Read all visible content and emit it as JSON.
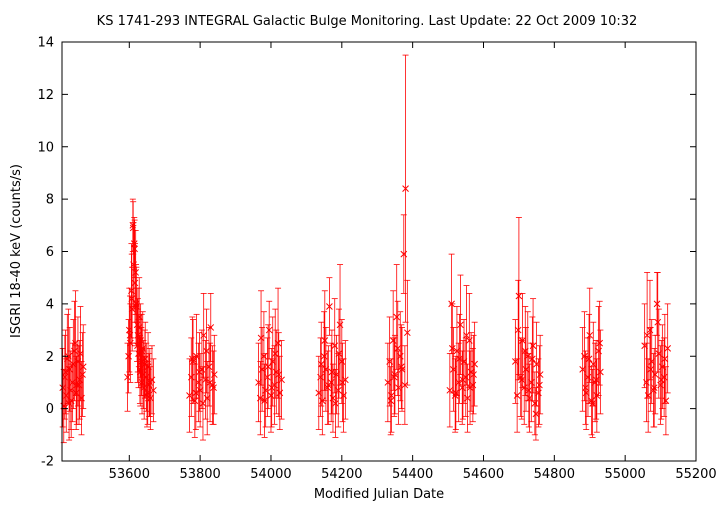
{
  "chart_data": {
    "type": "scatter",
    "title": "KS 1741-293   INTEGRAL Galactic Bulge Monitoring.  Last Update: 22 Oct 2009 10:32",
    "xlabel": "Modified Julian Date",
    "ylabel": "ISGRI 18-40 keV (counts/s)",
    "xlim": [
      53410,
      55200
    ],
    "ylim": [
      -2,
      14
    ],
    "x_ticks": [
      53600,
      53800,
      54000,
      54200,
      54400,
      54600,
      54800,
      55000,
      55200
    ],
    "y_ticks": [
      -2,
      0,
      2,
      4,
      6,
      8,
      10,
      12,
      14
    ],
    "grid": false,
    "legend": "none",
    "marker": "x",
    "error_bars": "vertical",
    "colors": {
      "series": "#ff0000",
      "axes": "#000000"
    },
    "series": [
      {
        "x": [
          53412,
          53418,
          53422,
          53428,
          53432,
          53436,
          53440,
          53445,
          53450,
          53455,
          53460,
          53465,
          53470,
          53415,
          53425,
          53435,
          53448,
          53458,
          53468,
          53420,
          53430,
          53442,
          53452,
          53462,
          53595,
          53598,
          53600,
          53603,
          53606,
          53608,
          53610,
          53612,
          53614,
          53616,
          53618,
          53620,
          53622,
          53624,
          53626,
          53628,
          53630,
          53632,
          53634,
          53636,
          53638,
          53640,
          53642,
          53645,
          53648,
          53650,
          53653,
          53656,
          53660,
          53664,
          53668,
          53602,
          53607,
          53611,
          53615,
          53619,
          53623,
          53627,
          53631,
          53635,
          53644,
          53652,
          53658,
          53770,
          53775,
          53780,
          53785,
          53790,
          53795,
          53800,
          53805,
          53810,
          53815,
          53820,
          53825,
          53830,
          53835,
          53840,
          53778,
          53788,
          53798,
          53808,
          53818,
          53828,
          53838,
          53965,
          53970,
          53975,
          53980,
          53985,
          53990,
          53995,
          54000,
          54005,
          54010,
          54015,
          54020,
          54025,
          54030,
          53972,
          53982,
          53992,
          54002,
          54012,
          54022,
          54135,
          54140,
          54145,
          54150,
          54155,
          54160,
          54165,
          54170,
          54175,
          54180,
          54185,
          54190,
          54195,
          54200,
          54205,
          54210,
          54142,
          54152,
          54162,
          54172,
          54182,
          54192,
          54202,
          54330,
          54335,
          54340,
          54345,
          54350,
          54355,
          54360,
          54365,
          54370,
          54375,
          54380,
          54385,
          54338,
          54348,
          54358,
          54368,
          54378,
          54505,
          54510,
          54515,
          54520,
          54525,
          54530,
          54535,
          54540,
          54545,
          54550,
          54555,
          54560,
          54565,
          54570,
          54575,
          54512,
          54522,
          54532,
          54542,
          54552,
          54562,
          54572,
          54690,
          54695,
          54700,
          54705,
          54710,
          54715,
          54720,
          54725,
          54730,
          54735,
          54740,
          54745,
          54750,
          54755,
          54760,
          54698,
          54708,
          54718,
          54728,
          54738,
          54748,
          54758,
          54880,
          54885,
          54890,
          54895,
          54900,
          54905,
          54910,
          54915,
          54920,
          54925,
          54930,
          54888,
          54898,
          54908,
          54918,
          54928,
          55055,
          55060,
          55065,
          55070,
          55075,
          55080,
          55085,
          55090,
          55095,
          55100,
          55105,
          55110,
          55115,
          55120,
          55062,
          55072,
          55082,
          55092,
          55102,
          55112
        ],
        "y": [
          0.8,
          1.2,
          0.5,
          2.0,
          1.5,
          0.3,
          1.0,
          2.2,
          0.6,
          1.8,
          1.1,
          0.4,
          1.6,
          0.1,
          1.9,
          0.7,
          2.5,
          0.9,
          1.3,
          1.4,
          0.2,
          1.7,
          0.9,
          2.1,
          1.2,
          2.0,
          3.0,
          2.5,
          4.5,
          3.8,
          7.0,
          5.5,
          6.3,
          4.8,
          5.2,
          3.9,
          3.2,
          2.8,
          2.1,
          3.5,
          1.5,
          2.6,
          1.8,
          1.0,
          2.3,
          1.3,
          0.8,
          1.9,
          1.2,
          0.5,
          1.6,
          0.9,
          0.4,
          1.1,
          0.7,
          2.8,
          4.2,
          6.9,
          6.1,
          4.0,
          2.4,
          3.1,
          1.4,
          2.2,
          1.7,
          0.6,
          1.0,
          0.5,
          1.2,
          1.8,
          0.3,
          2.0,
          1.0,
          0.7,
          1.5,
          2.8,
          1.1,
          0.4,
          1.6,
          3.1,
          0.9,
          1.3,
          1.9,
          0.6,
          1.4,
          0.2,
          2.2,
          1.0,
          0.8,
          1.0,
          0.4,
          1.5,
          2.0,
          0.7,
          1.2,
          3.0,
          0.5,
          1.8,
          0.9,
          1.4,
          2.5,
          0.6,
          1.1,
          2.7,
          0.3,
          1.6,
          0.8,
          2.1,
          1.3,
          0.6,
          1.2,
          0.3,
          2.0,
          1.5,
          0.8,
          3.9,
          1.0,
          0.4,
          2.4,
          1.3,
          0.7,
          3.2,
          1.8,
          0.5,
          1.1,
          1.7,
          2.6,
          0.9,
          1.4,
          0.2,
          2.1,
          1.0,
          1.0,
          1.8,
          0.5,
          2.6,
          1.3,
          3.5,
          0.8,
          2.0,
          1.5,
          5.9,
          8.4,
          2.9,
          0.3,
          1.2,
          2.3,
          1.6,
          0.9,
          0.7,
          4.0,
          1.5,
          0.5,
          2.2,
          1.0,
          3.2,
          0.8,
          1.8,
          1.2,
          0.4,
          2.6,
          1.4,
          0.9,
          1.7,
          2.3,
          0.6,
          1.9,
          1.1,
          2.8,
          0.8,
          1.3,
          1.8,
          0.5,
          4.3,
          1.2,
          2.6,
          0.8,
          1.5,
          2.0,
          0.4,
          1.0,
          2.4,
          0.2,
          1.7,
          0.6,
          1.3,
          3.0,
          1.1,
          2.2,
          0.7,
          1.9,
          -0.2,
          0.9,
          1.5,
          2.0,
          0.6,
          1.2,
          2.8,
          0.3,
          1.7,
          1.0,
          0.5,
          2.2,
          1.4,
          0.8,
          1.9,
          0.2,
          1.1,
          2.5,
          2.4,
          1.0,
          0.5,
          3.0,
          1.8,
          0.7,
          1.3,
          4.0,
          2.1,
          0.9,
          1.6,
          1.2,
          0.3,
          2.3,
          2.8,
          1.5,
          0.8,
          3.3,
          1.1,
          1.9
        ],
        "err": [
          1.5,
          1.6,
          1.4,
          1.8,
          1.6,
          1.4,
          1.5,
          1.9,
          1.4,
          1.7,
          1.5,
          1.4,
          1.6,
          1.4,
          1.7,
          1.5,
          2.0,
          1.5,
          1.6,
          1.6,
          1.4,
          1.7,
          1.5,
          1.8,
          1.3,
          1.4,
          1.6,
          1.5,
          1.8,
          1.6,
          1.0,
          1.6,
          1.0,
          1.5,
          1.6,
          1.5,
          1.4,
          1.4,
          1.3,
          1.5,
          1.3,
          1.4,
          1.3,
          1.2,
          1.4,
          1.3,
          1.2,
          1.4,
          1.3,
          1.2,
          1.3,
          1.2,
          1.2,
          1.3,
          1.2,
          1.5,
          1.7,
          1.0,
          1.1,
          1.5,
          1.4,
          1.5,
          1.3,
          1.4,
          1.3,
          1.2,
          1.3,
          1.4,
          1.5,
          1.6,
          1.4,
          1.6,
          1.5,
          1.4,
          1.5,
          1.6,
          1.5,
          1.4,
          1.5,
          1.3,
          1.5,
          1.5,
          1.6,
          1.4,
          1.5,
          1.4,
          1.6,
          1.5,
          1.4,
          1.5,
          1.4,
          1.6,
          1.7,
          1.4,
          1.5,
          1.1,
          1.4,
          1.7,
          1.5,
          1.6,
          2.1,
          1.4,
          1.5,
          1.8,
          1.4,
          1.6,
          1.5,
          1.7,
          1.6,
          1.4,
          1.5,
          1.3,
          1.7,
          1.6,
          1.4,
          1.1,
          1.5,
          1.3,
          1.8,
          1.5,
          1.4,
          2.3,
          1.6,
          1.4,
          1.5,
          1.6,
          1.9,
          1.5,
          1.6,
          1.3,
          1.7,
          1.5,
          1.5,
          1.7,
          1.4,
          1.9,
          1.5,
          2.0,
          1.4,
          1.7,
          1.6,
          1.5,
          5.1,
          2.0,
          1.3,
          1.5,
          1.8,
          1.6,
          1.5,
          1.4,
          1.9,
          1.6,
          1.4,
          1.7,
          1.5,
          1.9,
          1.4,
          1.6,
          1.5,
          1.3,
          1.8,
          1.5,
          1.4,
          1.6,
          1.7,
          1.4,
          1.7,
          1.5,
          1.9,
          1.4,
          1.5,
          1.6,
          1.4,
          3.0,
          1.5,
          1.8,
          1.4,
          1.6,
          1.7,
          1.3,
          1.5,
          1.8,
          1.2,
          1.6,
          1.3,
          1.5,
          1.9,
          1.5,
          1.7,
          1.4,
          1.6,
          1.0,
          1.5,
          1.6,
          1.7,
          1.4,
          1.5,
          1.8,
          1.3,
          1.6,
          1.5,
          1.4,
          1.7,
          1.6,
          1.4,
          1.7,
          1.3,
          1.5,
          1.6,
          1.6,
          1.5,
          1.4,
          1.9,
          1.6,
          1.4,
          1.5,
          1.2,
          1.7,
          1.5,
          1.6,
          1.5,
          1.3,
          1.7,
          2.4,
          1.6,
          1.5,
          1.9,
          1.5,
          1.7
        ]
      }
    ]
  }
}
